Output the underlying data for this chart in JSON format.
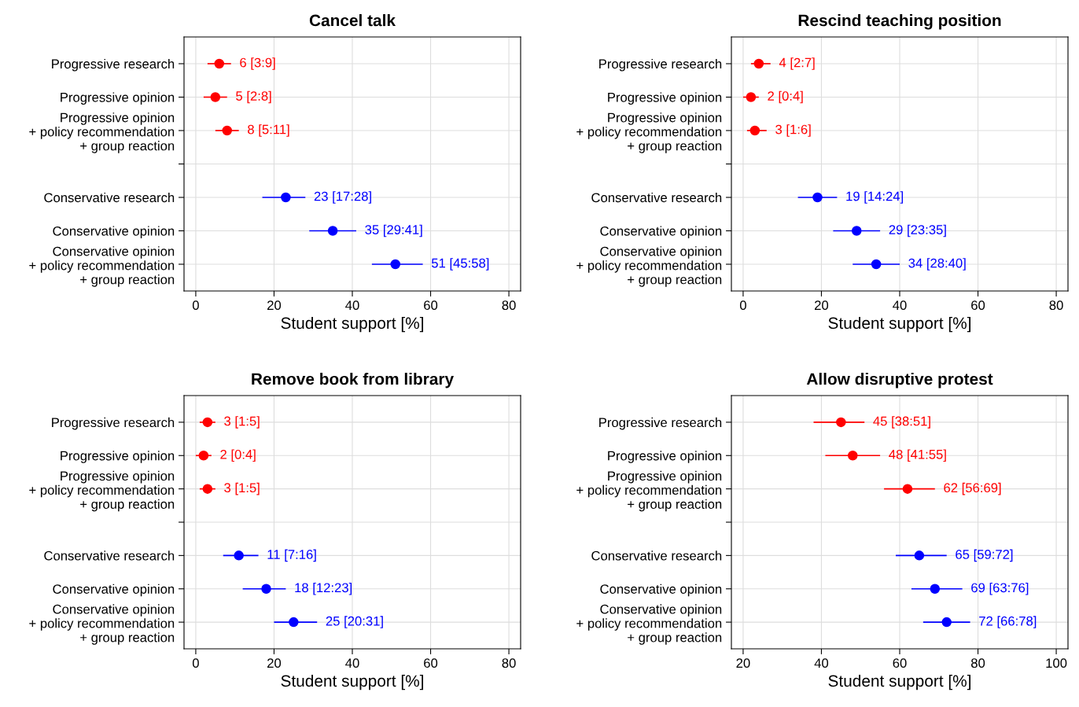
{
  "chart_data": [
    {
      "type": "scatter",
      "orientation": "horizontal",
      "title": "Cancel talk",
      "xlabel": "Student support [%]",
      "categories": [
        "Progressive research",
        "Progressive opinion",
        "Progressive opinion\n+ policy recommendation\n+ group reaction",
        null,
        "Conservative research",
        "Conservative opinion",
        "Conservative opinion\n+ policy recommendation\n+ group reaction"
      ],
      "xlim": [
        -3,
        83
      ],
      "xticks": [
        0,
        20,
        40,
        60,
        80
      ],
      "grid": true,
      "marker": "circle",
      "series": [
        {
          "color": "#ff0000",
          "values": [
            6,
            5,
            8,
            null,
            null,
            null,
            null
          ],
          "errors": [
            [
              3,
              9
            ],
            [
              2,
              8
            ],
            [
              5,
              11
            ],
            null,
            null,
            null,
            null
          ],
          "value_labels": [
            "6 [3:9]",
            "5 [2:8]",
            "8 [5:11]",
            null,
            null,
            null,
            null
          ]
        },
        {
          "color": "#0000ff",
          "values": [
            null,
            null,
            null,
            null,
            23,
            35,
            51
          ],
          "errors": [
            null,
            null,
            null,
            null,
            [
              17,
              28
            ],
            [
              29,
              41
            ],
            [
              45,
              58
            ]
          ],
          "value_labels": [
            null,
            null,
            null,
            null,
            "23 [17:28]",
            "35 [29:41]",
            "51 [45:58]"
          ]
        }
      ]
    },
    {
      "type": "scatter",
      "orientation": "horizontal",
      "title": "Rescind teaching position",
      "xlabel": "Student support [%]",
      "categories": [
        "Progressive research",
        "Progressive opinion",
        "Progressive opinion\n+ policy recommendation\n+ group reaction",
        null,
        "Conservative research",
        "Conservative opinion",
        "Conservative opinion\n+ policy recommendation\n+ group reaction"
      ],
      "xlim": [
        -3,
        83
      ],
      "xticks": [
        0,
        20,
        40,
        60,
        80
      ],
      "grid": true,
      "marker": "circle",
      "series": [
        {
          "color": "#ff0000",
          "values": [
            4,
            2,
            3,
            null,
            null,
            null,
            null
          ],
          "errors": [
            [
              2,
              7
            ],
            [
              0,
              4
            ],
            [
              1,
              6
            ],
            null,
            null,
            null,
            null
          ],
          "value_labels": [
            "4 [2:7]",
            "2 [0:4]",
            "3 [1:6]",
            null,
            null,
            null,
            null
          ]
        },
        {
          "color": "#0000ff",
          "values": [
            null,
            null,
            null,
            null,
            19,
            29,
            34
          ],
          "errors": [
            null,
            null,
            null,
            null,
            [
              14,
              24
            ],
            [
              23,
              35
            ],
            [
              28,
              40
            ]
          ],
          "value_labels": [
            null,
            null,
            null,
            null,
            "19 [14:24]",
            "29 [23:35]",
            "34 [28:40]"
          ]
        }
      ]
    },
    {
      "type": "scatter",
      "orientation": "horizontal",
      "title": "Remove book from library",
      "xlabel": "Student support [%]",
      "categories": [
        "Progressive research",
        "Progressive opinion",
        "Progressive opinion\n+ policy recommendation\n+ group reaction",
        null,
        "Conservative research",
        "Conservative opinion",
        "Conservative opinion\n+ policy recommendation\n+ group reaction"
      ],
      "xlim": [
        -3,
        83
      ],
      "xticks": [
        0,
        20,
        40,
        60,
        80
      ],
      "grid": true,
      "marker": "circle",
      "series": [
        {
          "color": "#ff0000",
          "values": [
            3,
            2,
            3,
            null,
            null,
            null,
            null
          ],
          "errors": [
            [
              1,
              5
            ],
            [
              0,
              4
            ],
            [
              1,
              5
            ],
            null,
            null,
            null,
            null
          ],
          "value_labels": [
            "3 [1:5]",
            "2 [0:4]",
            "3 [1:5]",
            null,
            null,
            null,
            null
          ]
        },
        {
          "color": "#0000ff",
          "values": [
            null,
            null,
            null,
            null,
            11,
            18,
            25
          ],
          "errors": [
            null,
            null,
            null,
            null,
            [
              7,
              16
            ],
            [
              12,
              23
            ],
            [
              20,
              31
            ]
          ],
          "value_labels": [
            null,
            null,
            null,
            null,
            "11 [7:16]",
            "18 [12:23]",
            "25 [20:31]"
          ]
        }
      ]
    },
    {
      "type": "scatter",
      "orientation": "horizontal",
      "title": "Allow disruptive protest",
      "xlabel": "Student support [%]",
      "categories": [
        "Progressive research",
        "Progressive opinion",
        "Progressive opinion\n+ policy recommendation\n+ group reaction",
        null,
        "Conservative research",
        "Conservative opinion",
        "Conservative opinion\n+ policy recommendation\n+ group reaction"
      ],
      "xlim": [
        17,
        103
      ],
      "xticks": [
        20,
        40,
        60,
        80,
        100
      ],
      "grid": true,
      "marker": "circle",
      "series": [
        {
          "color": "#ff0000",
          "values": [
            45,
            48,
            62,
            null,
            null,
            null,
            null
          ],
          "errors": [
            [
              38,
              51
            ],
            [
              41,
              55
            ],
            [
              56,
              69
            ],
            null,
            null,
            null,
            null
          ],
          "value_labels": [
            "45 [38:51]",
            "48 [41:55]",
            "62 [56:69]",
            null,
            null,
            null,
            null
          ]
        },
        {
          "color": "#0000ff",
          "values": [
            null,
            null,
            null,
            null,
            65,
            69,
            72
          ],
          "errors": [
            null,
            null,
            null,
            null,
            [
              59,
              72
            ],
            [
              63,
              76
            ],
            [
              66,
              78
            ]
          ],
          "value_labels": [
            null,
            null,
            null,
            null,
            "65 [59:72]",
            "69 [63:76]",
            "72 [66:78]"
          ]
        }
      ]
    }
  ]
}
